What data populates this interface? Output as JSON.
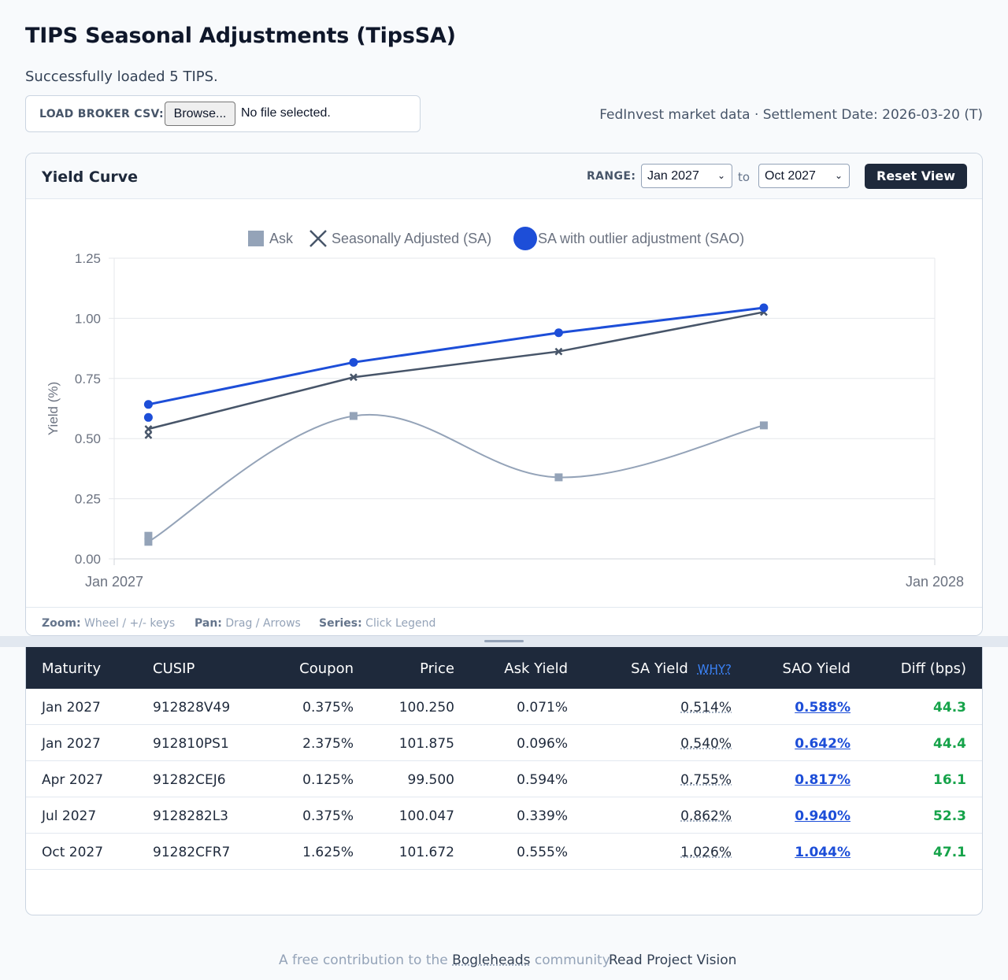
{
  "page": {
    "title": "TIPS Seasonal Adjustments (TipsSA)",
    "status": "Successfully loaded 5 TIPS."
  },
  "csv": {
    "label": "LOAD BROKER CSV:",
    "browse_label": "Browse...",
    "file_status": "No file selected."
  },
  "market_info": "FedInvest market data · Settlement Date: 2026-03-20 (T)",
  "chart": {
    "title": "Yield Curve",
    "range_label": "RANGE:",
    "range_from": "Jan 2027",
    "range_to_word": "to",
    "range_to": "Oct 2027",
    "reset_label": "Reset View",
    "hints": {
      "zoom_key": "Zoom:",
      "zoom_val": "Wheel / +/- keys",
      "pan_key": "Pan:",
      "pan_val": "Drag / Arrows",
      "series_key": "Series:",
      "series_val": "Click Legend"
    }
  },
  "chart_data": {
    "type": "line",
    "ylabel": "Yield (%)",
    "xlabel": "",
    "ylim": [
      0,
      1.25
    ],
    "yticks": [
      0.0,
      0.25,
      0.5,
      0.75,
      1.0,
      1.25
    ],
    "xlim_months": [
      0,
      12
    ],
    "xtick_labels": [
      {
        "m": 0,
        "label": "Jan 2027"
      },
      {
        "m": 12,
        "label": "Jan 2028"
      }
    ],
    "grid": true,
    "legend_position": "top-center",
    "series": [
      {
        "name": "Ask",
        "color": "#94a3b8",
        "marker": "square",
        "points": [
          [
            0.5,
            0.071
          ],
          [
            0.5,
            0.096
          ],
          [
            3.5,
            0.594
          ],
          [
            6.5,
            0.339
          ],
          [
            9.5,
            0.555
          ]
        ]
      },
      {
        "name": "Seasonally Adjusted (SA)",
        "color": "#475569",
        "marker": "x",
        "points": [
          [
            0.5,
            0.514
          ],
          [
            0.5,
            0.54
          ],
          [
            3.5,
            0.755
          ],
          [
            6.5,
            0.862
          ],
          [
            9.5,
            1.026
          ]
        ]
      },
      {
        "name": "SA with outlier adjustment (SAO)",
        "color": "#1d4ed8",
        "marker": "circle",
        "points": [
          [
            0.5,
            0.588
          ],
          [
            0.5,
            0.642
          ],
          [
            3.5,
            0.817
          ],
          [
            6.5,
            0.94
          ],
          [
            9.5,
            1.044
          ]
        ]
      }
    ]
  },
  "table": {
    "headers": {
      "maturity": "Maturity",
      "cusip": "CUSIP",
      "coupon": "Coupon",
      "price": "Price",
      "ask_yield": "Ask Yield",
      "sa_yield": "SA Yield",
      "why": "WHY?",
      "sao_yield": "SAO Yield",
      "diff": "Diff (bps)"
    },
    "rows": [
      {
        "maturity": "Jan 2027",
        "cusip": "912828V49",
        "coupon": "0.375%",
        "price": "100.250",
        "ask_yield": "0.071%",
        "sa_yield": "0.514%",
        "sao_yield": "0.588%",
        "diff": "44.3"
      },
      {
        "maturity": "Jan 2027",
        "cusip": "912810PS1",
        "coupon": "2.375%",
        "price": "101.875",
        "ask_yield": "0.096%",
        "sa_yield": "0.540%",
        "sao_yield": "0.642%",
        "diff": "44.4"
      },
      {
        "maturity": "Apr 2027",
        "cusip": "91282CEJ6",
        "coupon": "0.125%",
        "price": "99.500",
        "ask_yield": "0.594%",
        "sa_yield": "0.755%",
        "sao_yield": "0.817%",
        "diff": "16.1"
      },
      {
        "maturity": "Jul 2027",
        "cusip": "9128282L3",
        "coupon": "0.375%",
        "price": "100.047",
        "ask_yield": "0.339%",
        "sa_yield": "0.862%",
        "sao_yield": "0.940%",
        "diff": "52.3"
      },
      {
        "maturity": "Oct 2027",
        "cusip": "91282CFR7",
        "coupon": "1.625%",
        "price": "101.672",
        "ask_yield": "0.555%",
        "sa_yield": "1.026%",
        "sao_yield": "1.044%",
        "diff": "47.1"
      }
    ]
  },
  "footer": {
    "prefix": "A free contribution to the",
    "link": "Bogleheads",
    "suffix": "community.",
    "vision": "Read Project Vision"
  }
}
